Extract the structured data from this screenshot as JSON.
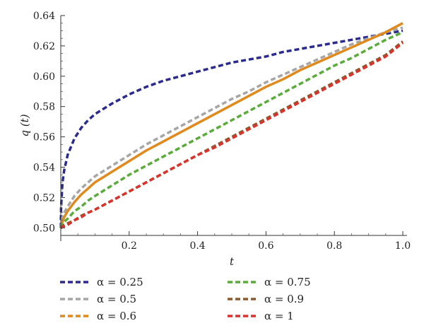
{
  "chart_data": {
    "type": "line",
    "title": "",
    "xlabel": "t",
    "ylabel": "q (t)",
    "xlim": [
      0,
      1.0
    ],
    "ylim": [
      0.495,
      0.64
    ],
    "grid": false,
    "legend_position": "bottom",
    "x_ticks": [
      {
        "value": 0.2,
        "label": "0.2"
      },
      {
        "value": 0.4,
        "label": "0.4"
      },
      {
        "value": 0.6,
        "label": "0.6"
      },
      {
        "value": 0.8,
        "label": "0.8"
      },
      {
        "value": 1.0,
        "label": "1.0"
      }
    ],
    "y_ticks": [
      {
        "value": 0.5,
        "label": "0.50"
      },
      {
        "value": 0.52,
        "label": "0.52"
      },
      {
        "value": 0.54,
        "label": "0.54"
      },
      {
        "value": 0.56,
        "label": "0.56"
      },
      {
        "value": 0.58,
        "label": "0.58"
      },
      {
        "value": 0.6,
        "label": "0.60"
      },
      {
        "value": 0.62,
        "label": "0.62"
      },
      {
        "value": 0.64,
        "label": "0.64"
      }
    ],
    "x": [
      0,
      0.001,
      0.005,
      0.01,
      0.02,
      0.04,
      0.06,
      0.08,
      0.1,
      0.15,
      0.2,
      0.25,
      0.3,
      0.35,
      0.4,
      0.45,
      0.5,
      0.55,
      0.6,
      0.65,
      0.7,
      0.75,
      0.8,
      0.85,
      0.9,
      0.95,
      1.0
    ],
    "series": [
      {
        "name": "α = 0.25",
        "color": "#2b2b8f",
        "dashed": true,
        "values": [
          0.5,
          0.514,
          0.53,
          0.538,
          0.548,
          0.559,
          0.566,
          0.571,
          0.575,
          0.582,
          0.588,
          0.593,
          0.597,
          0.6,
          0.603,
          0.606,
          0.609,
          0.611,
          0.613,
          0.616,
          0.618,
          0.62,
          0.622,
          0.624,
          0.626,
          0.628,
          0.63
        ]
      },
      {
        "name": "α = 0.5",
        "color": "#a6a6a6",
        "dashed": true,
        "values": [
          0.5,
          0.502,
          0.507,
          0.51,
          0.514,
          0.521,
          0.526,
          0.53,
          0.534,
          0.541,
          0.548,
          0.555,
          0.561,
          0.567,
          0.573,
          0.579,
          0.585,
          0.59,
          0.596,
          0.601,
          0.606,
          0.611,
          0.616,
          0.621,
          0.625,
          0.629,
          0.632
        ]
      },
      {
        "name": "α = 0.6",
        "color": "#e08a1e",
        "dashed": false,
        "values": [
          0.5,
          0.501,
          0.504,
          0.507,
          0.511,
          0.517,
          0.522,
          0.526,
          0.53,
          0.537,
          0.544,
          0.551,
          0.557,
          0.563,
          0.569,
          0.575,
          0.581,
          0.587,
          0.593,
          0.598,
          0.604,
          0.609,
          0.614,
          0.619,
          0.624,
          0.629,
          0.635
        ]
      },
      {
        "name": "α = 0.75",
        "color": "#5aac3a",
        "dashed": true,
        "values": [
          0.5,
          0.501,
          0.503,
          0.504,
          0.506,
          0.511,
          0.514,
          0.518,
          0.521,
          0.528,
          0.535,
          0.541,
          0.547,
          0.553,
          0.559,
          0.565,
          0.571,
          0.577,
          0.583,
          0.589,
          0.595,
          0.601,
          0.607,
          0.612,
          0.618,
          0.624,
          0.629
        ]
      },
      {
        "name": "α = 0.9",
        "color": "#8c5a2e",
        "dashed": true,
        "values": [
          0.5,
          0.5,
          0.501,
          0.502,
          0.503,
          0.505,
          0.508,
          0.51,
          0.512,
          0.518,
          0.524,
          0.53,
          0.536,
          0.542,
          0.548,
          0.554,
          0.56,
          0.566,
          0.572,
          0.578,
          0.584,
          0.59,
          0.596,
          0.602,
          0.608,
          0.614,
          0.623
        ]
      },
      {
        "name": "α = 1",
        "color": "#d9332b",
        "dashed": true,
        "values": [
          0.5,
          0.5,
          0.501,
          0.501,
          0.502,
          0.505,
          0.507,
          0.51,
          0.512,
          0.518,
          0.524,
          0.53,
          0.536,
          0.542,
          0.548,
          0.553,
          0.559,
          0.565,
          0.571,
          0.577,
          0.583,
          0.589,
          0.595,
          0.601,
          0.607,
          0.613,
          0.622
        ]
      }
    ]
  }
}
